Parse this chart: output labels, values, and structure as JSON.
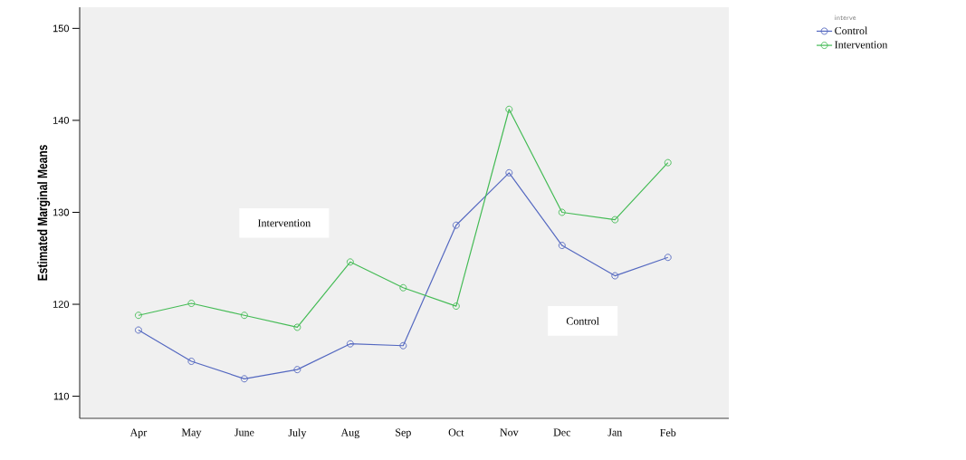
{
  "chart_data": {
    "type": "line",
    "ylabel": "Estimated Marginal Means",
    "legend_title": "interve",
    "categories": [
      "Apr",
      "May",
      "June",
      "July",
      "Aug",
      "Sep",
      "Oct",
      "Nov",
      "Dec",
      "Jan",
      "Feb"
    ],
    "series": [
      {
        "name": "Control",
        "color": "#5468c0",
        "values": [
          117.2,
          113.8,
          111.9,
          112.9,
          115.7,
          115.5,
          128.6,
          134.3,
          126.4,
          123.1,
          125.1
        ]
      },
      {
        "name": "Intervention",
        "color": "#44bb55",
        "values": [
          118.8,
          120.1,
          118.8,
          117.5,
          124.6,
          121.8,
          119.8,
          141.2,
          130.0,
          129.2,
          135.4
        ]
      }
    ],
    "ylim": [
      107.6,
      152.3
    ],
    "yticks": [
      110,
      120,
      130,
      140,
      150
    ],
    "marker": "circle",
    "legend": "top right",
    "grid": false,
    "annotations": [
      "Intervention",
      "Control"
    ]
  }
}
